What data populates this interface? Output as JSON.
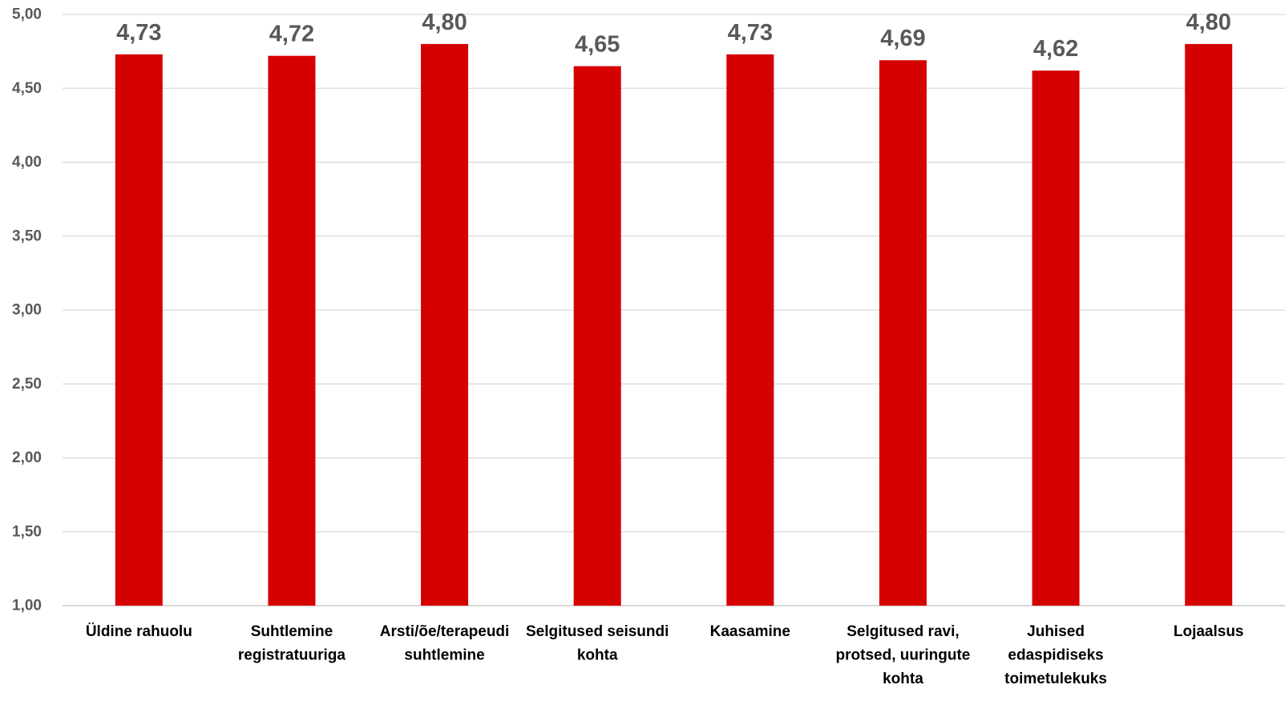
{
  "chart_data": {
    "type": "bar",
    "title": "",
    "xlabel": "",
    "ylabel": "",
    "categories": [
      [
        "Üldine rahuolu"
      ],
      [
        "Suhtlemine",
        "registratuuriga"
      ],
      [
        "Arsti/õe/terapeudi",
        "suhtlemine"
      ],
      [
        "Selgitused seisundi",
        "kohta"
      ],
      [
        "Kaasamine"
      ],
      [
        "Selgitused ravi,",
        "protsed, uuringute",
        "kohta"
      ],
      [
        "Juhised",
        "edaspidiseks",
        "toimetulekuks"
      ],
      [
        "Lojaalsus"
      ]
    ],
    "values": [
      4.73,
      4.72,
      4.8,
      4.65,
      4.73,
      4.69,
      4.62,
      4.8
    ],
    "value_labels": [
      "4,73",
      "4,72",
      "4,80",
      "4,65",
      "4,73",
      "4,69",
      "4,62",
      "4,80"
    ],
    "ylim": [
      1.0,
      5.0
    ],
    "yticks": [
      1.0,
      1.5,
      2.0,
      2.5,
      3.0,
      3.5,
      4.0,
      4.5,
      5.0
    ],
    "ytick_labels": [
      "1,00",
      "1,50",
      "2,00",
      "2,50",
      "3,00",
      "3,50",
      "4,00",
      "4,50",
      "5,00"
    ],
    "grid": true,
    "legend": "none",
    "colors": {
      "bar": "#d50000",
      "gridline": "#d9d9d9",
      "tick_text": "#595959",
      "data_label_text": "#595959",
      "category_text": "#000000"
    }
  }
}
